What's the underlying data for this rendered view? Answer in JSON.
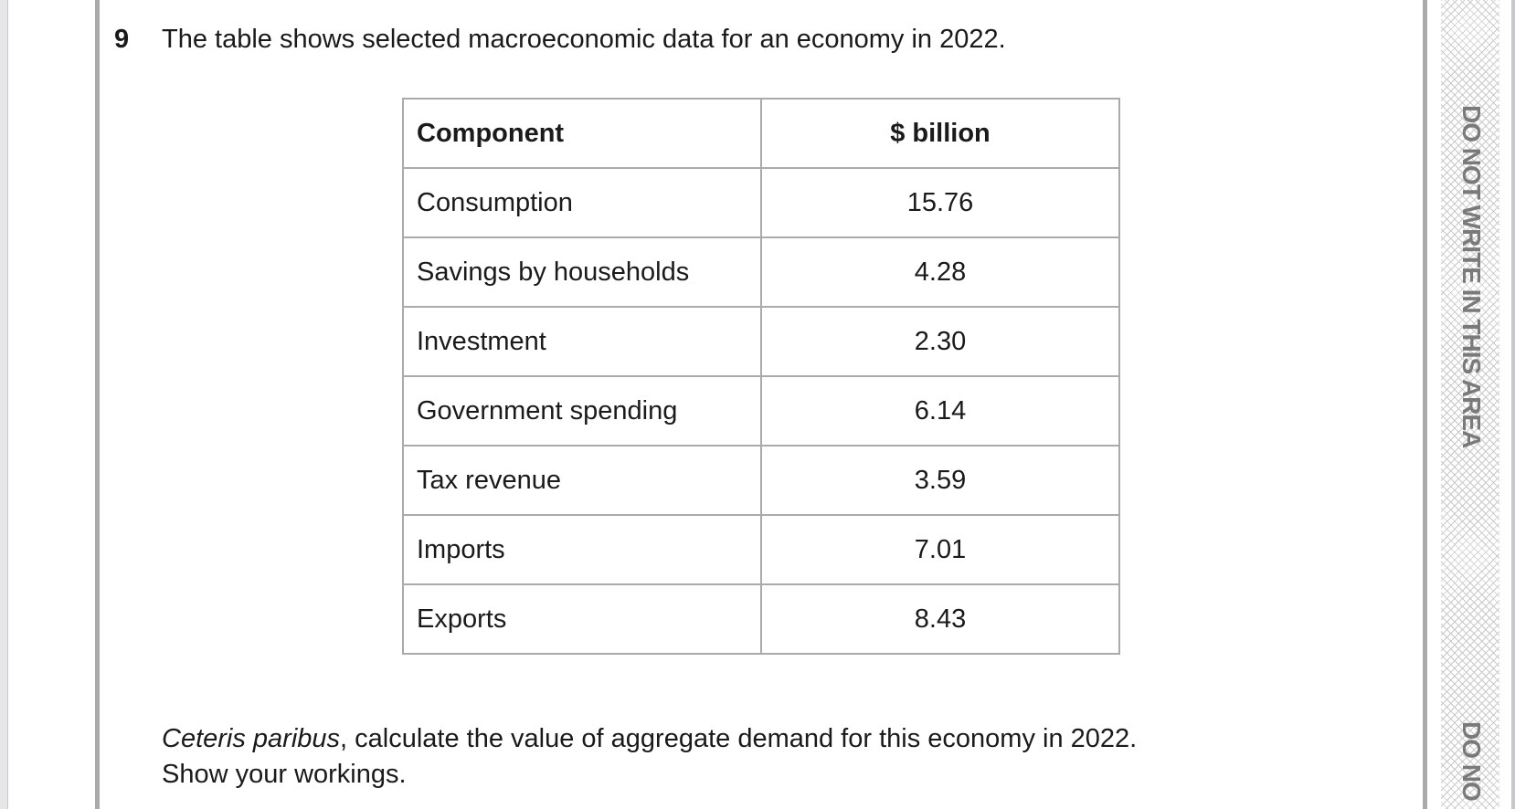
{
  "question": {
    "number": "9",
    "intro": "The table shows selected macroeconomic data for an economy in 2022.",
    "prompt_italic": "Ceteris paribus",
    "prompt_rest": ", calculate the value of aggregate demand for this economy in 2022.",
    "instruction": "Show your workings."
  },
  "table": {
    "headers": [
      "Component",
      "$ billion"
    ],
    "rows": [
      [
        "Consumption",
        "15.76"
      ],
      [
        "Savings by households",
        "4.28"
      ],
      [
        "Investment",
        "2.30"
      ],
      [
        "Government spending",
        "6.14"
      ],
      [
        "Tax revenue",
        "3.59"
      ],
      [
        "Imports",
        "7.01"
      ],
      [
        "Exports",
        "8.43"
      ]
    ]
  },
  "margin": {
    "warning": "DO NOT WRITE IN THIS AREA",
    "warning_partial": "DO NO"
  }
}
